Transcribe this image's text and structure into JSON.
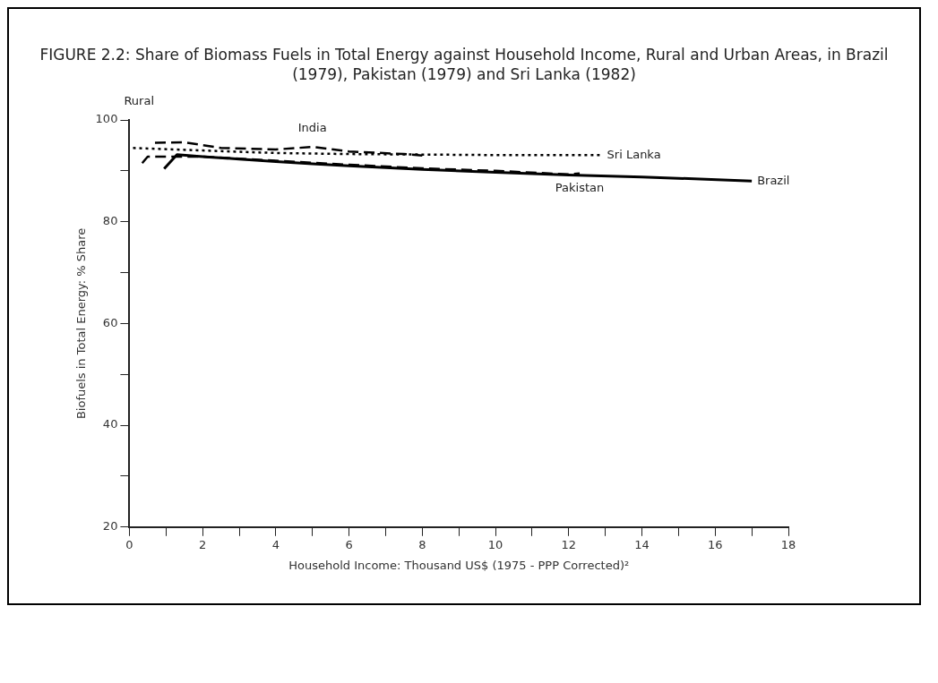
{
  "chart_data": {
    "type": "line",
    "title": "FIGURE 2.2: Share of Biomass Fuels in Total Energy against Household Income, Rural and Urban Areas, in Brazil (1979), Pakistan (1979) and Sri Lanka (1982)",
    "xlabel": "Household Income: Thousand US$ (1975 - PPP Corrected)²",
    "ylabel": "Biofuels in Total Energy: % Share",
    "annotations": [
      "Rural"
    ],
    "series": [
      {
        "name": "Brazil",
        "color": "#000000",
        "line_style": "solid",
        "x": [
          0.95,
          1.3,
          2,
          3,
          4,
          5,
          6,
          8,
          10,
          12,
          14,
          17
        ],
        "values": [
          90.4,
          93.2,
          92.8,
          92.3,
          91.8,
          91.4,
          91,
          90.3,
          89.7,
          89.2,
          88.8,
          88
        ]
      },
      {
        "name": "Pakistan",
        "color": "#000000",
        "line_style": "dashed",
        "x": [
          0.35,
          0.5,
          2,
          4,
          6,
          8,
          10,
          12,
          12.3
        ],
        "values": [
          91.5,
          92.8,
          92.8,
          92,
          91.2,
          90.5,
          90,
          89.3,
          89.5
        ]
      },
      {
        "name": "India",
        "color": "#000000",
        "line_style": "dashed",
        "x": [
          0.7,
          1.5,
          2.5,
          4,
          5,
          6,
          7.5,
          8
        ],
        "values": [
          95.5,
          95.6,
          94.5,
          94.2,
          94.7,
          93.8,
          93.3,
          93
        ]
      },
      {
        "name": "Sri Lanka",
        "color": "#000000",
        "line_style": "dotted",
        "x": [
          0.1,
          2,
          4,
          6,
          8,
          10,
          12.9
        ],
        "values": [
          94.5,
          94,
          93.5,
          93.3,
          93.2,
          93.1,
          93.1
        ]
      }
    ],
    "xlim": [
      0,
      18
    ],
    "ylim": [
      20,
      100
    ],
    "xticks": [
      0,
      {
        "value": 1,
        "label": null
      },
      2,
      {
        "value": 3,
        "label": null
      },
      4,
      {
        "value": 5,
        "label": null
      },
      6,
      {
        "value": 7,
        "label": null
      },
      8,
      {
        "value": 9,
        "label": null
      },
      10,
      {
        "value": 11,
        "label": null
      },
      12,
      {
        "value": 13,
        "label": null
      },
      14,
      {
        "value": 15,
        "label": null
      },
      16,
      {
        "value": 17,
        "label": null
      },
      18
    ],
    "yticks": [
      20,
      {
        "value": 30,
        "label": null
      },
      40,
      {
        "value": 50,
        "label": null
      },
      60,
      {
        "value": 70,
        "label": null
      },
      80,
      {
        "value": 90,
        "label": null
      },
      100
    ],
    "grid": false,
    "legend": false,
    "marker": "none"
  }
}
